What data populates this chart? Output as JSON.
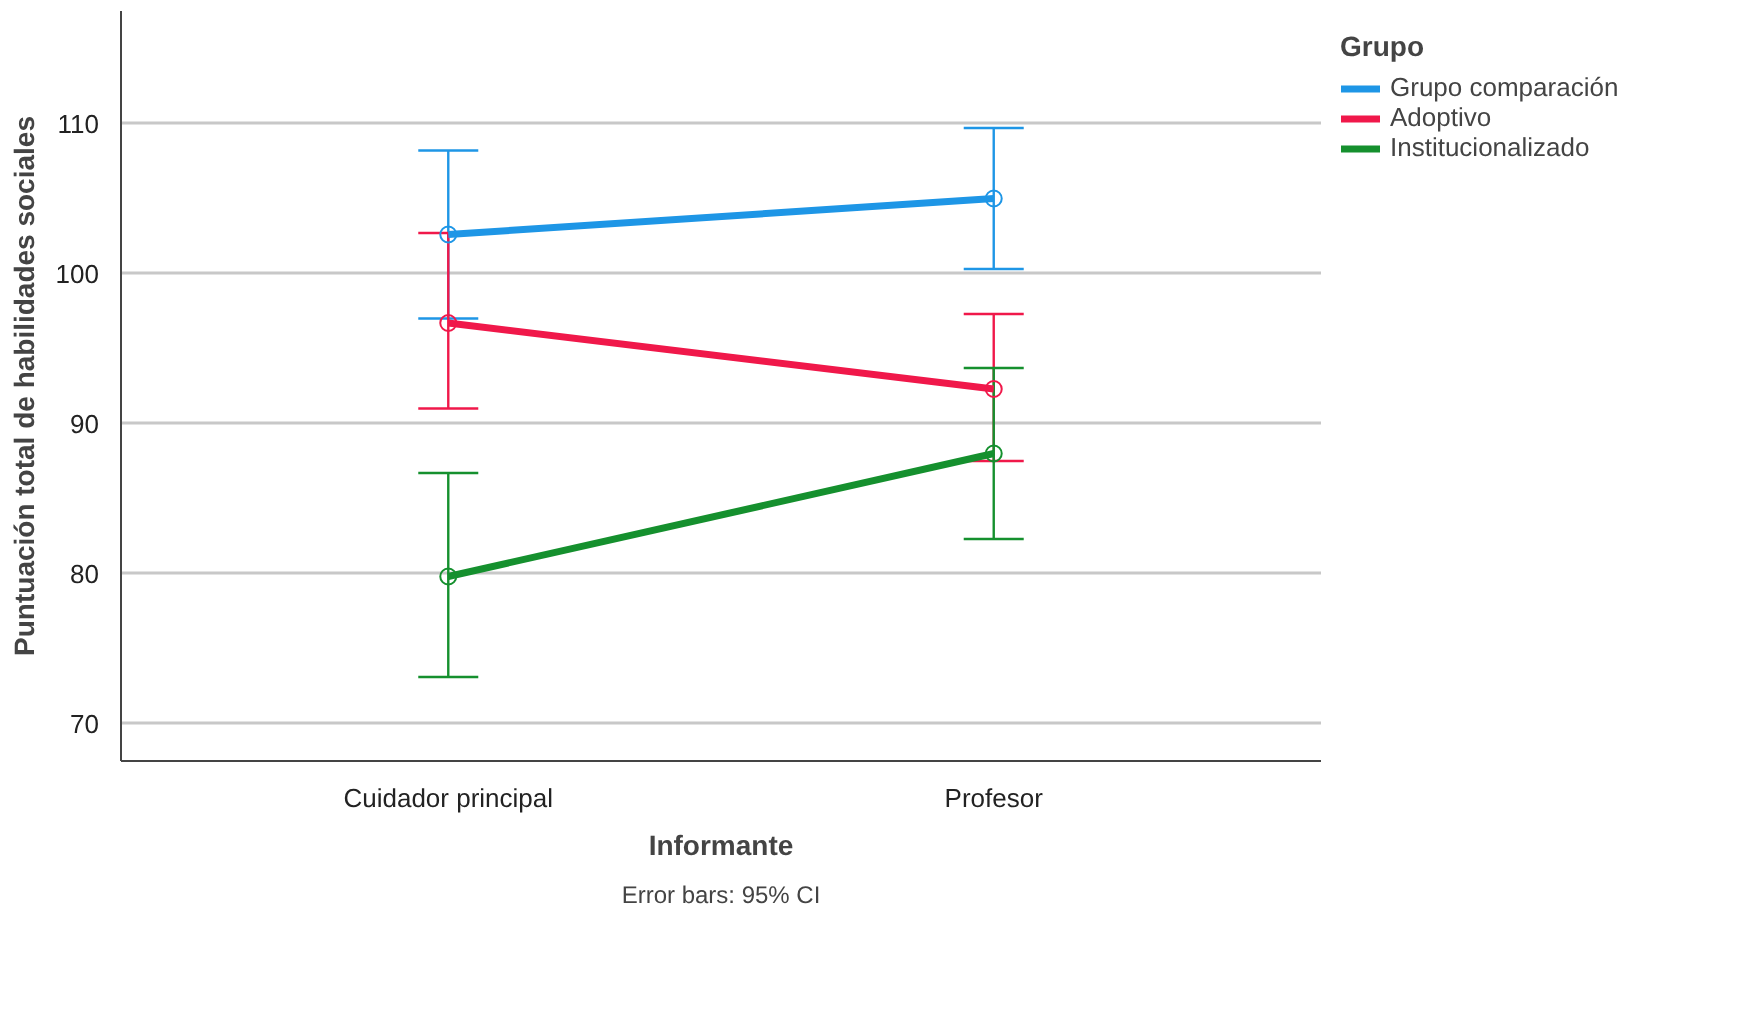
{
  "chart_data": {
    "type": "line",
    "xlabel": "Informante",
    "ylabel": "Puntuación total de habilidades sociales",
    "legend_title": "Grupo",
    "categories": [
      "Cuidador principal",
      "Profesor"
    ],
    "series": [
      {
        "name": "Grupo comparación",
        "color": "#1e96e6",
        "values": [
          102.6,
          105.0
        ],
        "errors": [
          [
            97.0,
            108.2
          ],
          [
            100.3,
            109.7
          ]
        ]
      },
      {
        "name": "Adoptivo",
        "color": "#f0184a",
        "values": [
          96.7,
          92.3
        ],
        "errors": [
          [
            91.0,
            102.7
          ],
          [
            87.5,
            97.3
          ]
        ]
      },
      {
        "name": "Institucionalizado",
        "color": "#15902e",
        "values": [
          79.8,
          88.0
        ],
        "errors": [
          [
            73.1,
            86.7
          ],
          [
            82.3,
            93.7
          ]
        ]
      }
    ],
    "ylim": [
      67.5,
      117.5
    ],
    "yticks": [
      70,
      80,
      90,
      100,
      110
    ],
    "grid": "y",
    "legend": "top right",
    "marker": "circle",
    "line_style": "solid",
    "annotations": [
      "Error bars: 95% CI"
    ]
  }
}
